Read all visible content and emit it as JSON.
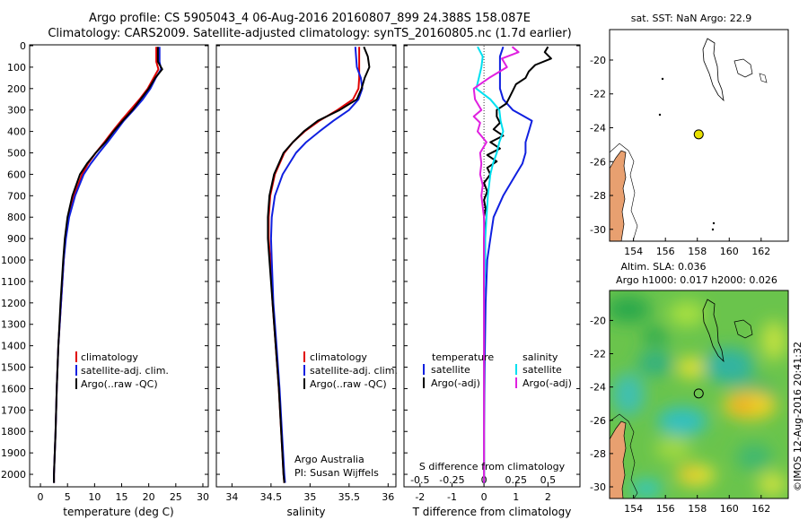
{
  "header": {
    "line1": "Argo profile: CS 5905043_4 06-Aug-2016 20160807_899 24.388S 158.087E",
    "line2": "Climatology: CARS2009. Satellite-adjusted climatology: synTS_20160805.nc (1.7d earlier)"
  },
  "colors": {
    "climatology": "#e00000",
    "satellite": "#1020e0",
    "argo": "#000000",
    "salinity_satellite": "#00e0f0",
    "salinity_argo": "#e020e0",
    "land": "#e8a070",
    "float_marker": "#e8e000"
  },
  "depth_ticks": [
    "0",
    "100",
    "200",
    "300",
    "400",
    "500",
    "600",
    "700",
    "800",
    "900",
    "1000",
    "1100",
    "1200",
    "1300",
    "1400",
    "1500",
    "1600",
    "1700",
    "1800",
    "1900",
    "2000"
  ],
  "chart_data": [
    {
      "type": "line",
      "name": "temperature-profile",
      "xlabel": "temperature (deg C)",
      "x_ticks": [
        "0",
        "5",
        "10",
        "15",
        "20",
        "25",
        "30"
      ],
      "xlim": [
        -2,
        31
      ],
      "ylim": [
        2050,
        0
      ],
      "legend": [
        "climatology",
        "satellite-adj. clim.",
        "Argo(..raw -QC)"
      ],
      "series": [
        {
          "name": "climatology",
          "depth": [
            5,
            75,
            110,
            150,
            200,
            250,
            300,
            350,
            400,
            450,
            500,
            550,
            600,
            700,
            800,
            900,
            1000,
            1200,
            1400,
            1600,
            1800,
            2000,
            2040
          ],
          "values": [
            21.4,
            21.4,
            21.8,
            20.9,
            19.8,
            18.3,
            16.6,
            14.9,
            13.3,
            11.8,
            10.2,
            8.8,
            7.7,
            6.2,
            5.2,
            4.6,
            4.3,
            3.8,
            3.3,
            3.0,
            2.8,
            2.5,
            2.5
          ]
        },
        {
          "name": "satellite-adj. clim.",
          "depth": [
            5,
            75,
            110,
            150,
            200,
            250,
            300,
            350,
            400,
            450,
            500,
            550,
            600,
            700,
            800,
            900,
            1000,
            1200,
            1400,
            1600,
            1800,
            2000,
            2040
          ],
          "values": [
            22.0,
            22.0,
            22.3,
            21.3,
            20.3,
            18.9,
            17.2,
            15.4,
            13.9,
            12.4,
            10.8,
            9.3,
            8.0,
            6.4,
            5.3,
            4.7,
            4.3,
            3.8,
            3.3,
            3.0,
            2.8,
            2.5,
            2.5
          ]
        },
        {
          "name": "Argo(..raw -QC)",
          "depth": [
            5,
            75,
            110,
            150,
            200,
            250,
            300,
            350,
            400,
            450,
            500,
            550,
            600,
            700,
            800,
            900,
            1000,
            1200,
            1400,
            1600,
            1800,
            2000,
            2040
          ],
          "values": [
            21.7,
            21.7,
            22.5,
            21.2,
            20.0,
            18.5,
            17.0,
            15.2,
            13.5,
            12.0,
            10.2,
            8.6,
            7.3,
            5.9,
            5.0,
            4.5,
            4.2,
            3.7,
            3.3,
            3.0,
            2.8,
            2.5,
            2.5
          ]
        }
      ]
    },
    {
      "type": "line",
      "name": "salinity-profile",
      "xlabel": "salinity",
      "x_ticks": [
        "34",
        "34.5",
        "35",
        "35.5",
        "36"
      ],
      "xlim": [
        33.8,
        36.1
      ],
      "ylim": [
        2050,
        0
      ],
      "legend": [
        "climatology",
        "satellite-adj. clim.",
        "Argo(..raw -QC)"
      ],
      "annotation": [
        "Argo Australia",
        "PI: Susan Wijffels"
      ],
      "series": [
        {
          "name": "climatology",
          "depth": [
            5,
            100,
            150,
            200,
            250,
            300,
            350,
            400,
            450,
            500,
            600,
            700,
            800,
            900,
            1000,
            1200,
            1400,
            1600,
            1800,
            2000,
            2040
          ],
          "values": [
            35.63,
            35.63,
            35.63,
            35.62,
            35.55,
            35.35,
            35.12,
            34.93,
            34.78,
            34.67,
            34.55,
            34.49,
            34.47,
            34.47,
            34.49,
            34.52,
            34.56,
            34.6,
            34.63,
            34.66,
            34.67
          ]
        },
        {
          "name": "satellite-adj. clim.",
          "depth": [
            5,
            100,
            150,
            200,
            250,
            300,
            350,
            400,
            450,
            500,
            600,
            700,
            800,
            900,
            1000,
            1200,
            1400,
            1600,
            1800,
            2000,
            2040
          ],
          "values": [
            35.58,
            35.6,
            35.65,
            35.67,
            35.62,
            35.5,
            35.3,
            35.12,
            34.95,
            34.82,
            34.65,
            34.55,
            34.51,
            34.5,
            34.51,
            34.53,
            34.57,
            34.61,
            34.64,
            34.67,
            34.68
          ]
        },
        {
          "name": "Argo(..raw -QC)",
          "depth": [
            5,
            50,
            100,
            150,
            200,
            250,
            300,
            350,
            400,
            450,
            500,
            600,
            700,
            800,
            900,
            1000,
            1200,
            1400,
            1600,
            1800,
            2000,
            2040
          ],
          "values": [
            35.69,
            35.74,
            35.76,
            35.7,
            35.66,
            35.6,
            35.38,
            35.1,
            34.92,
            34.78,
            34.66,
            34.54,
            34.48,
            34.46,
            34.46,
            34.48,
            34.52,
            34.56,
            34.6,
            34.63,
            34.66,
            34.67
          ]
        }
      ]
    },
    {
      "type": "line",
      "name": "difference-profile",
      "xlabel": "T difference from climatology",
      "xlabel_top": "S difference from climatology",
      "x_ticks_T": [
        "-2",
        "-1",
        "0",
        "1",
        "2"
      ],
      "x_ticks_S": [
        "-0.5",
        "-0.25",
        "0",
        "0.25",
        "0.5"
      ],
      "xlim": [
        -2.5,
        3.0
      ],
      "ylim": [
        2050,
        0
      ],
      "legend_temperature": [
        "temperature",
        "satellite",
        "Argo(-adj)"
      ],
      "legend_salinity": [
        "salinity",
        "satellite",
        "Argo(-adj)"
      ],
      "series": [
        {
          "name": "temperature satellite",
          "depth": [
            5,
            50,
            100,
            150,
            200,
            250,
            300,
            350,
            400,
            450,
            500,
            550,
            600,
            700,
            800,
            900,
            1000,
            1200,
            1500,
            1800,
            2000,
            2040
          ],
          "values": [
            0.6,
            0.5,
            0.5,
            0.5,
            0.5,
            0.6,
            0.9,
            1.5,
            1.4,
            1.3,
            1.3,
            1.2,
            1.0,
            0.6,
            0.3,
            0.2,
            0.1,
            0.05,
            0.02,
            0.0,
            0.0,
            0.0
          ]
        },
        {
          "name": "temperature Argo(-adj)",
          "depth": [
            5,
            30,
            60,
            90,
            120,
            150,
            180,
            210,
            240,
            270,
            300,
            330,
            360,
            390,
            420,
            450,
            480,
            510,
            540,
            570,
            600,
            640,
            680,
            720,
            760,
            800,
            850,
            900,
            1000,
            1200,
            1500,
            1800,
            2000,
            2040
          ],
          "values": [
            2.0,
            1.9,
            2.1,
            1.6,
            1.4,
            1.3,
            1.0,
            0.9,
            0.8,
            0.7,
            0.4,
            0.4,
            0.5,
            0.3,
            0.6,
            0.2,
            0.5,
            0.1,
            0.4,
            0.1,
            0.2,
            0.0,
            0.1,
            0.0,
            0.05,
            0.0,
            0.02,
            0.0,
            0.0,
            0.0,
            0.0,
            0.0,
            0.0,
            0.0
          ]
        },
        {
          "name": "salinity satellite",
          "depth": [
            5,
            50,
            100,
            150,
            200,
            250,
            300,
            350,
            400,
            450,
            500,
            550,
            600,
            700,
            800,
            900,
            1000,
            1200,
            1500,
            1800,
            2000,
            2040
          ],
          "values": [
            -0.05,
            -0.01,
            -0.02,
            -0.04,
            -0.06,
            0.05,
            0.12,
            0.13,
            0.15,
            0.12,
            0.1,
            0.07,
            0.05,
            0.03,
            0.02,
            0.01,
            0.01,
            0.0,
            0.0,
            0.0,
            0.0,
            0.0
          ]
        },
        {
          "name": "salinity Argo(-adj)",
          "depth": [
            5,
            30,
            60,
            100,
            150,
            200,
            250,
            300,
            330,
            360,
            400,
            450,
            500,
            550,
            600,
            650,
            700,
            800,
            900,
            1000,
            1200,
            1500,
            1800,
            2000,
            2040
          ],
          "values": [
            0.22,
            0.27,
            0.14,
            0.18,
            0.04,
            -0.08,
            -0.07,
            -0.02,
            -0.08,
            -0.03,
            -0.05,
            0.02,
            -0.03,
            -0.02,
            -0.03,
            -0.01,
            -0.02,
            0.0,
            0.0,
            0.0,
            0.0,
            0.0,
            0.0,
            0.0,
            0.0
          ]
        }
      ]
    },
    {
      "type": "map",
      "name": "sst-map",
      "title": "sat. SST: NaN Argo: 22.9",
      "x_ticks": [
        "154",
        "156",
        "158",
        "160",
        "162"
      ],
      "y_ticks": [
        "-20",
        "-22",
        "-24",
        "-26",
        "-28",
        "-30"
      ],
      "xlim": [
        152.5,
        163.7
      ],
      "ylim": [
        -30.7,
        -18.2
      ],
      "float_position": {
        "lon": 158.087,
        "lat": -24.388
      }
    },
    {
      "type": "map",
      "name": "sla-map",
      "title_line1": "Altim. SLA: 0.036",
      "title_line2": "Argo h1000: 0.017 h2000: 0.026",
      "x_ticks": [
        "154",
        "156",
        "158",
        "160",
        "162"
      ],
      "y_ticks": [
        "-20",
        "-22",
        "-24",
        "-26",
        "-28",
        "-30"
      ],
      "xlim": [
        152.5,
        163.7
      ],
      "ylim": [
        -30.7,
        -18.2
      ],
      "float_position": {
        "lon": 158.087,
        "lat": -24.388
      }
    }
  ],
  "footer": {
    "side_label": "©IMOS 12-Aug-2016 20:41:32"
  }
}
